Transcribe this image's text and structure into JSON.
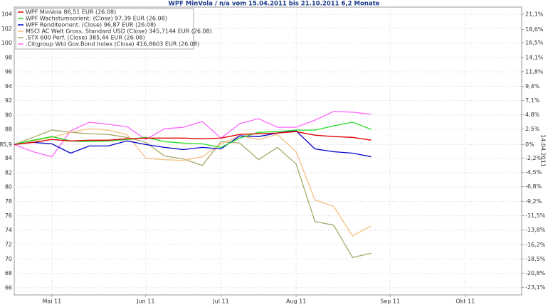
{
  "chart_data": {
    "type": "line",
    "title": "WPF MinVola / n/a vom 15.04.2011 bis 21.10.2011 6,2 Monate",
    "y2_label": "14.04.2011",
    "categories": [
      null,
      null,
      "Mai 11",
      null,
      null,
      null,
      null,
      "Jun 11",
      null,
      null,
      null,
      "Jul 11",
      null,
      null,
      null,
      "Aug 11",
      null,
      null,
      null,
      null,
      "Sep 11",
      null,
      null,
      null,
      "Okt 11",
      null,
      null,
      null
    ],
    "ylim": [
      65,
      105
    ],
    "yticks": [
      104,
      102,
      100,
      98,
      96,
      94,
      92,
      90,
      88,
      {
        "value": 85.9,
        "label": "85,9"
      },
      84,
      82,
      80,
      78,
      76,
      74,
      72,
      70,
      68,
      66
    ],
    "y2lim": [
      -24.33,
      22.24
    ],
    "y2ticks": [
      {
        "value": 21.1,
        "label": "21,1%"
      },
      {
        "value": 18.6,
        "label": "18,6%"
      },
      {
        "value": 16.5,
        "label": "16,5%"
      },
      {
        "value": 14.1,
        "label": "14,1%"
      },
      {
        "value": 11.8,
        "label": "11,8%"
      },
      {
        "value": 9.4,
        "label": "9,4%"
      },
      {
        "value": 7.1,
        "label": "7,1%"
      },
      {
        "value": 4.8,
        "label": "4,8%"
      },
      {
        "value": 2.5,
        "label": "2,5%"
      },
      {
        "value": 0,
        "label": "0%"
      },
      {
        "value": -2.2,
        "label": "-2,2%"
      },
      {
        "value": -4.5,
        "label": "-4,5%"
      },
      {
        "value": -6.8,
        "label": "-6,8%"
      },
      {
        "value": -9.2,
        "label": "-9,2%"
      },
      {
        "value": -11.5,
        "label": "-11,5%"
      },
      {
        "value": -13.8,
        "label": "-13,8%"
      },
      {
        "value": -16.2,
        "label": "-16,2%"
      },
      {
        "value": -18.5,
        "label": "-18,5%"
      },
      {
        "value": -20.8,
        "label": "-20,8%"
      },
      {
        "value": -23.1,
        "label": "-23,1%"
      }
    ],
    "grid": true,
    "legend": "top-left",
    "series": [
      {
        "name": "WPF MinVola 86,51 EUR (26.08)",
        "color": "#e00000",
        "values": [
          85.9,
          86.2,
          86.6,
          86.4,
          86.5,
          86.5,
          86.7,
          86.8,
          86.8,
          86.8,
          86.7,
          86.8,
          87.3,
          87.4,
          87.5,
          87.7,
          87.2,
          87.0,
          86.9,
          86.51,
          null,
          null,
          null,
          null,
          null,
          null,
          null,
          null
        ]
      },
      {
        "name": "WPF Wachstumsorient. (Close) 97,39 EUR (26.08)",
        "color": "#22dd22",
        "values": [
          85.9,
          86.5,
          87.0,
          86.4,
          86.3,
          86.4,
          86.6,
          86.9,
          86.3,
          86.1,
          86.0,
          85.5,
          86.8,
          87.6,
          87.7,
          87.9,
          87.9,
          88.5,
          89.0,
          88.0,
          null,
          null,
          null,
          null,
          null,
          null,
          null,
          null
        ]
      },
      {
        "name": "WPF Renditeorient. (Close) 96,87 EUR (26.08)",
        "color": "#0000cc",
        "values": [
          85.9,
          86.2,
          86.0,
          84.7,
          85.7,
          85.7,
          86.4,
          85.9,
          85.5,
          85.2,
          85.5,
          85.3,
          87.1,
          87.0,
          87.5,
          87.8,
          85.3,
          84.9,
          84.7,
          84.2,
          null,
          null,
          null,
          null,
          null,
          null,
          null,
          null
        ]
      },
      {
        "name": "MSCI AC Welt Gross, Standard USD (Close) 345,7144 EUR (26.08)",
        "color": "#f5c080",
        "values": [
          85.9,
          86.4,
          86.9,
          87.6,
          88.1,
          87.9,
          87.3,
          84.0,
          83.8,
          83.7,
          84.2,
          86.0,
          87.1,
          86.6,
          87.3,
          84.9,
          78.2,
          77.3,
          73.2,
          74.6,
          null,
          null,
          null,
          null,
          null,
          null,
          null,
          null
        ]
      },
      {
        "name": ".STX 600 Perf. (Close) 385,44 EUR (26.08)",
        "color": "#a8a868",
        "values": [
          85.9,
          86.9,
          87.9,
          87.6,
          87.4,
          87.3,
          86.9,
          86.2,
          84.3,
          83.9,
          83.0,
          86.3,
          86.1,
          83.8,
          85.5,
          83.2,
          75.2,
          74.7,
          70.2,
          70.8,
          null,
          null,
          null,
          null,
          null,
          null,
          null,
          null
        ]
      },
      {
        "name": ".Citigroup Wld Gov.Bond Index (Close) 416,8603 EUR (26.08)",
        "color": "#ff66ff",
        "values": [
          85.9,
          84.9,
          84.2,
          87.8,
          89.0,
          88.7,
          88.4,
          86.6,
          88.1,
          88.3,
          89.1,
          86.8,
          88.8,
          89.5,
          88.3,
          88.3,
          89.3,
          90.5,
          90.4,
          90.1,
          null,
          null,
          null,
          null,
          null,
          null,
          null,
          null
        ]
      }
    ]
  }
}
